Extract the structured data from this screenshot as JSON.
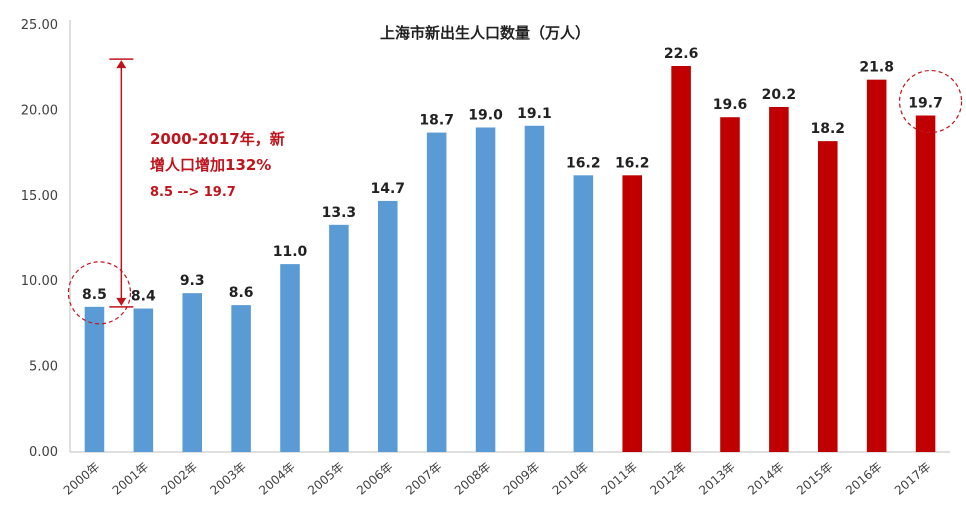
{
  "chart_data": {
    "type": "bar",
    "title": "上海市新出生人口数量（万人）",
    "xlabel": "",
    "ylabel": "",
    "ylim": [
      0,
      25
    ],
    "yticks": [
      "0.00",
      "5.00",
      "10.00",
      "15.00",
      "20.00",
      "25.00"
    ],
    "grid": false,
    "legend": "none",
    "categories": [
      "2000年",
      "2001年",
      "2002年",
      "2003年",
      "2004年",
      "2005年",
      "2006年",
      "2007年",
      "2008年",
      "2009年",
      "2010年",
      "2011年",
      "2012年",
      "2013年",
      "2014年",
      "2015年",
      "2016年",
      "2017年"
    ],
    "values": [
      8.5,
      8.4,
      9.3,
      8.6,
      11.0,
      13.3,
      14.7,
      18.7,
      19.0,
      19.1,
      16.2,
      16.2,
      22.6,
      19.6,
      20.2,
      18.2,
      21.8,
      19.7
    ],
    "value_labels": [
      "8.5",
      "8.4",
      "9.3",
      "8.6",
      "11.0",
      "13.3",
      "14.7",
      "18.7",
      "19.0",
      "19.1",
      "16.2",
      "16.2",
      "22.6",
      "19.6",
      "20.2",
      "18.2",
      "21.8",
      "19.7"
    ],
    "colors": {
      "blue": "#5b9bd5",
      "red": "#c00000",
      "annotation": "#c0141c"
    },
    "red_from_index": 11,
    "annotation": {
      "line1": "2000-2017年，新",
      "line2": "增人口增加132%",
      "line3": "8.5 --> 19.7",
      "arrow_from_value": 8.5,
      "arrow_to_value": 23.0,
      "circled_categories": [
        "2000年",
        "2017年"
      ]
    }
  }
}
